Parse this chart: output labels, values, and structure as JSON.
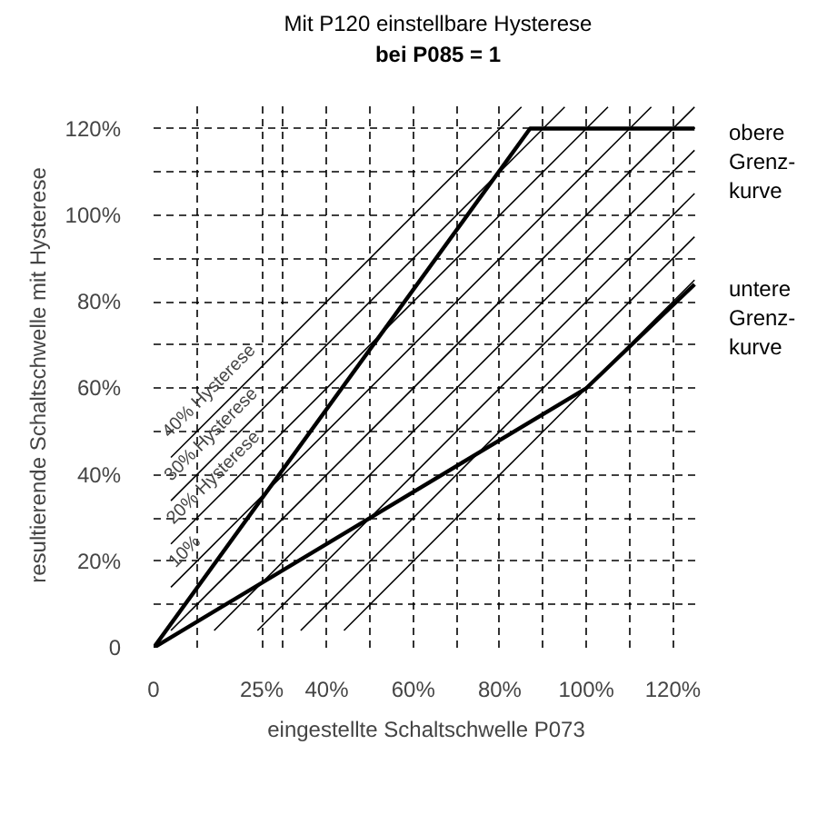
{
  "chart_data": {
    "type": "line",
    "title": "Mit P120 einstellbare Hysterese\nbei P085 = 1",
    "xlabel": "eingestellte Schaltschwelle P073",
    "ylabel": "resultierende Schaltschwelle mit Hysterese",
    "xlim": [
      0,
      126
    ],
    "ylim": [
      0,
      126
    ],
    "xticks": [
      {
        "value": 0,
        "label": "0"
      },
      {
        "value": 10,
        "label": null
      },
      {
        "value": 25,
        "label": "25%"
      },
      {
        "value": 30,
        "label": null
      },
      {
        "value": 40,
        "label": "40%"
      },
      {
        "value": 50,
        "label": null
      },
      {
        "value": 60,
        "label": "60%"
      },
      {
        "value": 70,
        "label": null
      },
      {
        "value": 80,
        "label": "80%"
      },
      {
        "value": 90,
        "label": null
      },
      {
        "value": 100,
        "label": "100%"
      },
      {
        "value": 110,
        "label": null
      },
      {
        "value": 120,
        "label": "120%"
      }
    ],
    "yticks": [
      {
        "value": 0,
        "label": "0"
      },
      {
        "value": 10,
        "label": null
      },
      {
        "value": 20,
        "label": "20%"
      },
      {
        "value": 30,
        "label": null
      },
      {
        "value": 40,
        "label": "40%"
      },
      {
        "value": 50,
        "label": null
      },
      {
        "value": 60,
        "label": "60%"
      },
      {
        "value": 70,
        "label": null
      },
      {
        "value": 80,
        "label": "80%"
      },
      {
        "value": 90,
        "label": null
      },
      {
        "value": 100,
        "label": "100%"
      },
      {
        "value": 110,
        "label": null
      },
      {
        "value": 120,
        "label": "120%"
      }
    ],
    "grid": true,
    "marker": "none",
    "line_style": "solid",
    "series": [
      {
        "name": "obere\nGrenz-\nkurve",
        "color": "#000000",
        "x": [
          0,
          87,
          125
        ],
        "values": [
          0,
          120,
          120
        ]
      },
      {
        "name": "untere\nGrenz-\nkurve",
        "color": "#000000",
        "x": [
          0,
          100,
          125
        ],
        "values": [
          0,
          60,
          84
        ]
      },
      {
        "color": "#000000",
        "x": [
          4,
          85
        ],
        "values": [
          44,
          125
        ]
      },
      {
        "color": "#000000",
        "x": [
          4,
          95
        ],
        "values": [
          34,
          125
        ]
      },
      {
        "color": "#000000",
        "x": [
          4,
          105
        ],
        "values": [
          24,
          125
        ]
      },
      {
        "color": "#000000",
        "x": [
          4,
          115
        ],
        "values": [
          14,
          125
        ]
      },
      {
        "color": "#000000",
        "x": [
          4,
          125
        ],
        "values": [
          4,
          125
        ]
      },
      {
        "color": "#000000",
        "x": [
          14,
          125
        ],
        "values": [
          4,
          115
        ]
      },
      {
        "color": "#000000",
        "x": [
          24,
          125
        ],
        "values": [
          4,
          105
        ]
      },
      {
        "color": "#000000",
        "x": [
          34,
          125
        ],
        "values": [
          4,
          95
        ]
      },
      {
        "color": "#000000",
        "x": [
          44,
          125
        ],
        "values": [
          4,
          85
        ]
      }
    ],
    "annotations": [
      "40% Hysterese",
      "30% Hysterese",
      "20% Hysterese",
      "10%"
    ]
  }
}
